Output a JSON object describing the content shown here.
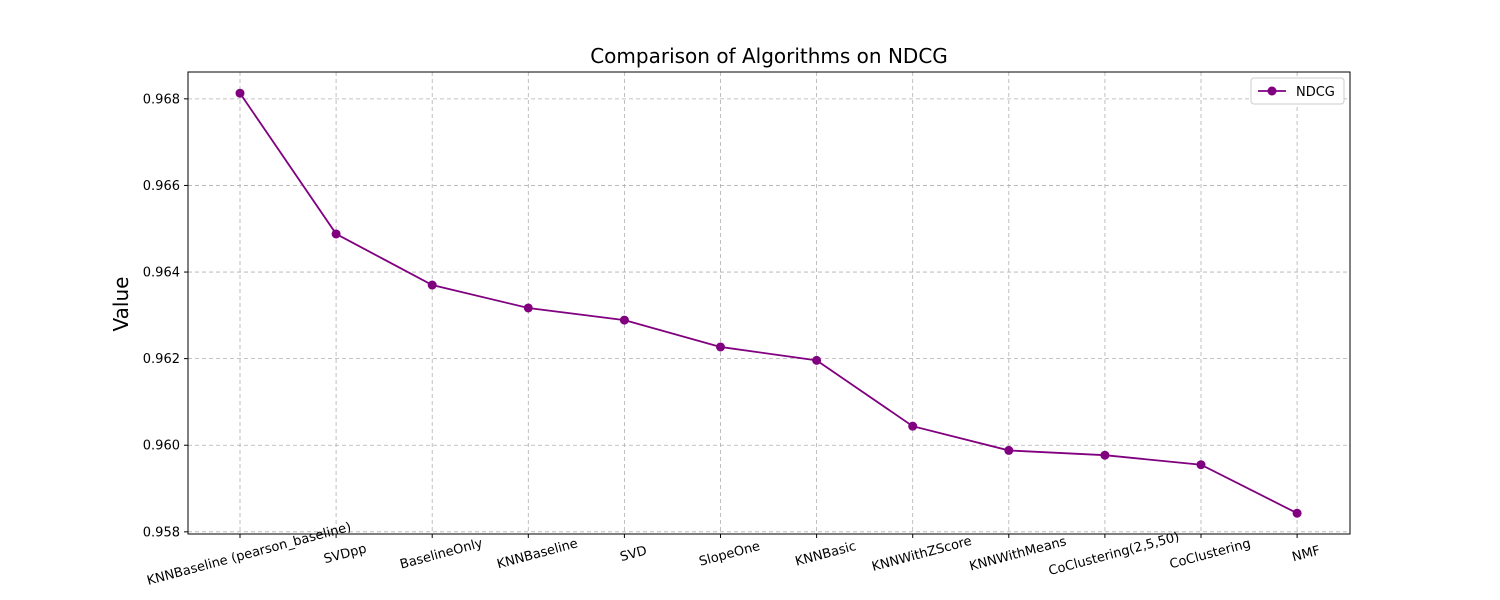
{
  "chart_data": {
    "type": "line",
    "title": "Comparison of Algorithms on NDCG",
    "xlabel": "",
    "ylabel": "Value",
    "categories": [
      "KNNBaseline (pearson_baseline)",
      "SVDpp",
      "BaselineOnly",
      "KNNBaseline",
      "SVD",
      "SlopeOne",
      "KNNBasic",
      "KNNWithZScore",
      "KNNWithMeans",
      "CoClustering(2,5,50)",
      "CoClustering",
      "NMF"
    ],
    "series": [
      {
        "name": "NDCG",
        "color": "#800080",
        "values": [
          0.96813,
          0.96488,
          0.9637,
          0.96317,
          0.96289,
          0.96227,
          0.96196,
          0.96044,
          0.95988,
          0.95977,
          0.95955,
          0.95843
        ]
      }
    ],
    "yticks": [
      0.958,
      0.96,
      0.962,
      0.964,
      0.966,
      0.968
    ],
    "ytick_labels": [
      "0.958",
      "0.960",
      "0.962",
      "0.964",
      "0.966",
      "0.968"
    ],
    "ylim": [
      0.95795,
      0.96862
    ],
    "grid": true,
    "legend_position": "top-right"
  }
}
